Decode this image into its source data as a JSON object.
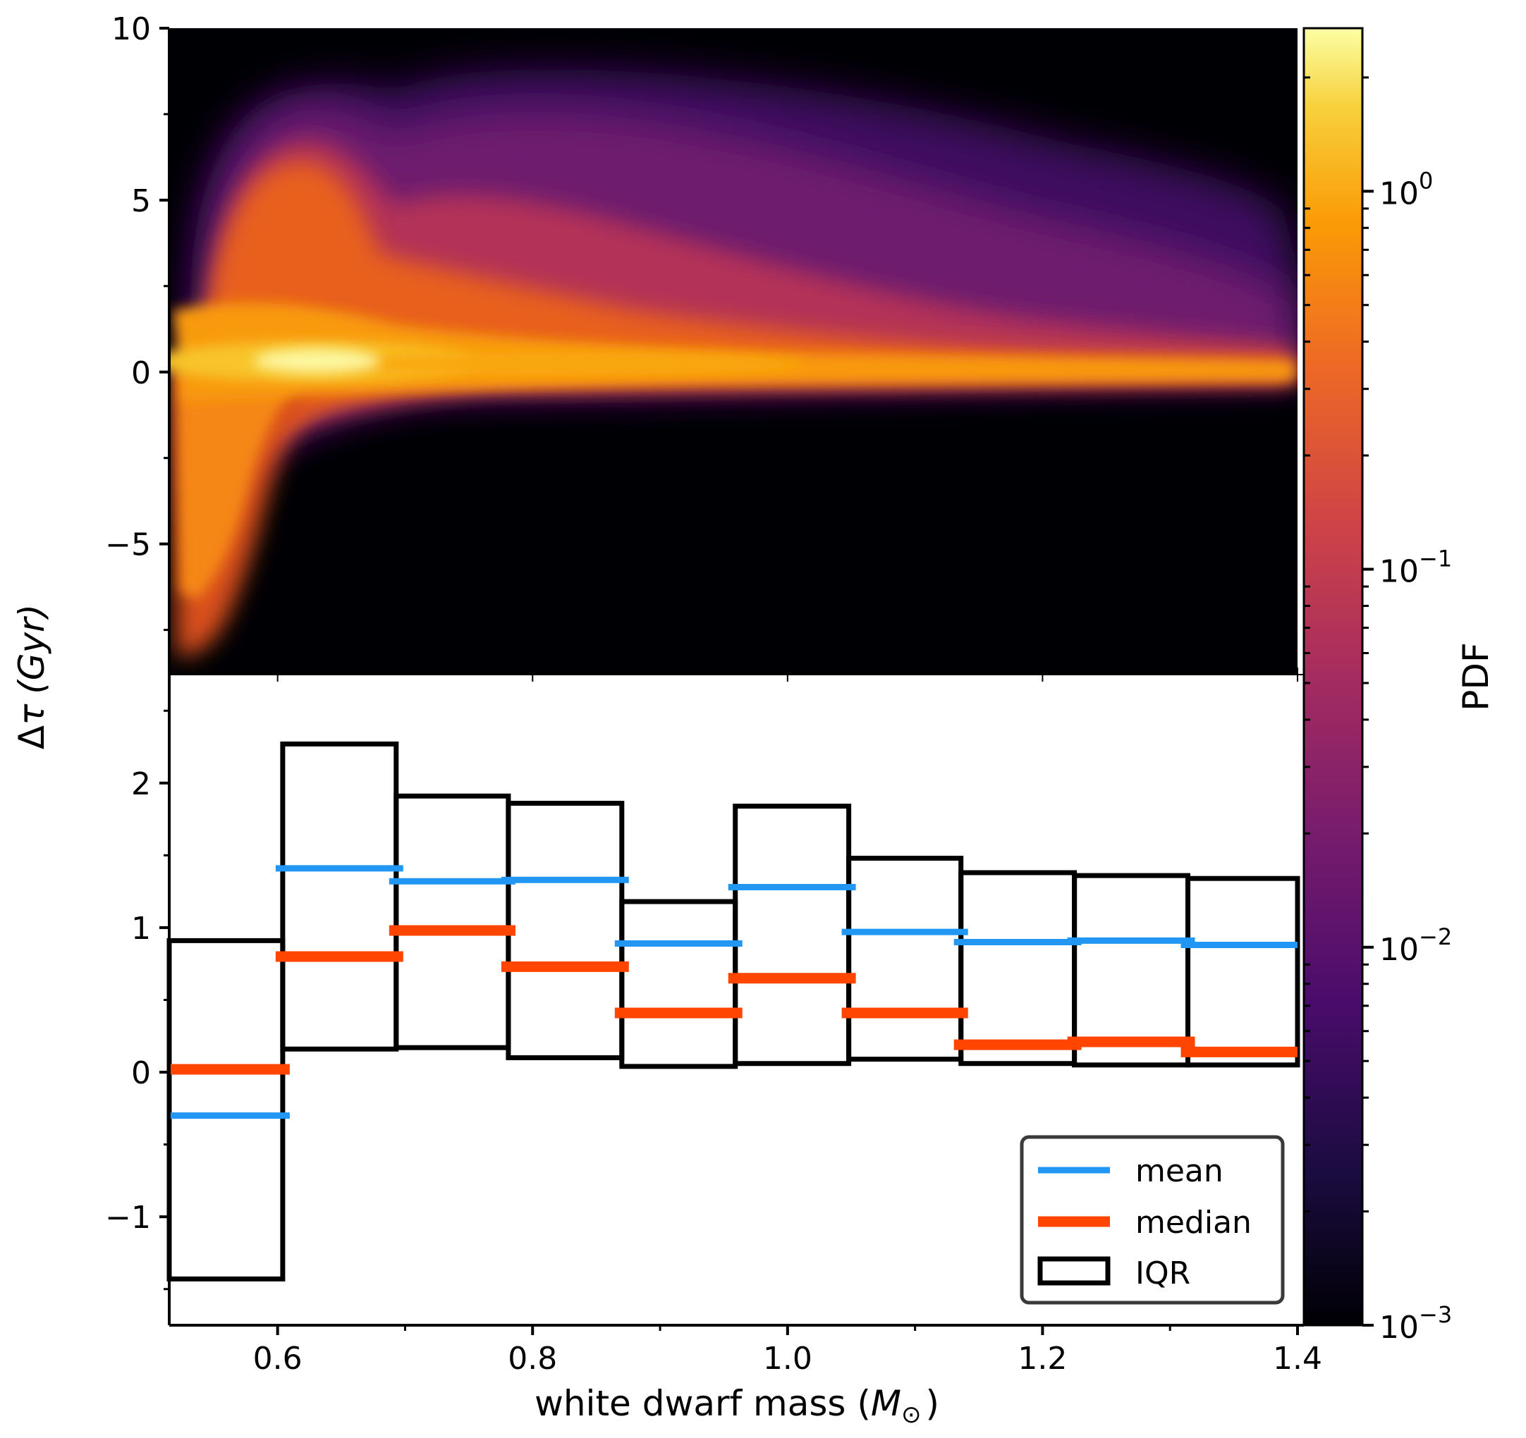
{
  "chart_data": [
    {
      "type": "heatmap",
      "description": "2D probability density of age difference vs white dwarf mass (log color scale, inferno colormap)",
      "xlim": [
        0.515,
        1.4
      ],
      "ylim": [
        -8.8,
        10
      ],
      "yticks": [
        10,
        5,
        0,
        -5
      ],
      "ytick_labels": [
        "10",
        "5",
        "0",
        "−5"
      ],
      "colorbar": {
        "label": "PDF",
        "scale": "log",
        "range": [
          0.001,
          2.7
        ],
        "colormap": "inferno",
        "ticks": [
          {
            "base": "10",
            "exp": "0",
            "value": 1
          },
          {
            "base": "10",
            "exp": "−1",
            "value": 0.1
          },
          {
            "base": "10",
            "exp": "−2",
            "value": 0.01
          },
          {
            "base": "10",
            "exp": "−3",
            "value": 0.001
          }
        ]
      }
    },
    {
      "type": "bar",
      "description": "Per-mass-bin statistics of the age difference",
      "xlabel_prefix": "white dwarf mass (",
      "xlabel_symbol": "M",
      "xlabel_sub": "⊙",
      "xlabel_suffix": ")",
      "ylabel_delta": "Δ",
      "ylabel_tau": "τ",
      "ylabel_unit": "(Gyr)",
      "xlim": [
        0.515,
        1.4
      ],
      "ylim": [
        -1.75,
        2.75
      ],
      "xticks": [
        0.6,
        0.8,
        1.0,
        1.2,
        1.4
      ],
      "xtick_labels": [
        "0.6",
        "0.8",
        "1.0",
        "1.2",
        "1.4"
      ],
      "yticks": [
        2,
        1,
        0,
        -1
      ],
      "ytick_labels": [
        "2",
        "1",
        "0",
        "−1"
      ],
      "bin_edges": [
        0.515,
        0.604,
        0.693,
        0.781,
        0.87,
        0.959,
        1.048,
        1.136,
        1.225,
        1.314,
        1.4
      ],
      "iqr_low": [
        -1.43,
        0.16,
        0.17,
        0.1,
        0.04,
        0.06,
        0.09,
        0.06,
        0.05,
        0.05
      ],
      "iqr_high": [
        0.91,
        2.27,
        1.91,
        1.86,
        1.18,
        1.84,
        1.48,
        1.38,
        1.36,
        1.34
      ],
      "series": [
        {
          "name": "mean",
          "color": "#2196f3",
          "values": [
            -0.3,
            1.41,
            1.32,
            1.33,
            0.89,
            1.28,
            0.97,
            0.9,
            0.91,
            0.88
          ]
        },
        {
          "name": "median",
          "color": "#ff4500",
          "values": [
            0.02,
            0.8,
            0.98,
            0.73,
            0.41,
            0.65,
            0.41,
            0.19,
            0.21,
            0.14
          ]
        }
      ],
      "legend": {
        "position": "bottom-right",
        "entries": [
          "mean",
          "median",
          "IQR"
        ]
      }
    }
  ]
}
